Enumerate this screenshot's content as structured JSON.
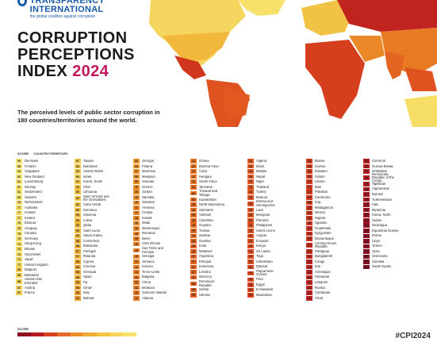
{
  "header": {
    "logo_name": "TRANSPARENCY INTERNATIONAL",
    "logo_tag": "the global coalition against corruption",
    "title_line1": "CORRUPTION",
    "title_line2": "PERCEPTIONS",
    "title_line3": "INDEX",
    "title_year": "2024",
    "subtitle": "The perceived levels of public sector corruption in 180 countries/territories around the world."
  },
  "table_header": {
    "score": "SCORE",
    "country": "COUNTRY/TERRITORY"
  },
  "colors": {
    "highest": "#f7e16b",
    "high": "#f3c43f",
    "mid": "#eb8f2a",
    "low": "#d6431f",
    "lowest": "#8e1022"
  },
  "columns": [
    [
      {
        "score": "90",
        "name": "Denmark",
        "tone": "#f7e46f"
      },
      {
        "score": "88",
        "name": "Finland",
        "tone": "#f7e46f"
      },
      {
        "score": "84",
        "name": "Singapore",
        "tone": "#f7e46f"
      },
      {
        "score": "83",
        "name": "New Zealand",
        "tone": "#f7e46f"
      },
      {
        "score": "81",
        "name": "Luxembourg",
        "tone": "#f7e46f"
      },
      {
        "score": "81",
        "name": "Norway",
        "tone": "#f7e46f"
      },
      {
        "score": "81",
        "name": "Switzerland",
        "tone": "#f7e46f"
      },
      {
        "score": "80",
        "name": "Sweden",
        "tone": "#f7e46f"
      },
      {
        "score": "78",
        "name": "Netherlands",
        "tone": "#f6de66"
      },
      {
        "score": "77",
        "name": "Australia",
        "tone": "#f6de66"
      },
      {
        "score": "77",
        "name": "Iceland",
        "tone": "#f6de66"
      },
      {
        "score": "77",
        "name": "Ireland",
        "tone": "#f6de66"
      },
      {
        "score": "76",
        "name": "Estonia",
        "tone": "#f6de66"
      },
      {
        "score": "76",
        "name": "Uruguay",
        "tone": "#f6de66"
      },
      {
        "score": "75",
        "name": "Canada",
        "tone": "#f6de66"
      },
      {
        "score": "75",
        "name": "Germany",
        "tone": "#f6de66"
      },
      {
        "score": "74",
        "name": "Hong Kong",
        "tone": "#f5d85e"
      },
      {
        "score": "72",
        "name": "Bhutan",
        "tone": "#f5d85e"
      },
      {
        "score": "72",
        "name": "Seychelles",
        "tone": "#f5d85e"
      },
      {
        "score": "71",
        "name": "Japan",
        "tone": "#f5d85e"
      },
      {
        "score": "71",
        "name": "United Kingdom",
        "tone": "#f5d85e"
      },
      {
        "score": "69",
        "name": "Belgium",
        "tone": "#f4d055"
      },
      {
        "score": "68",
        "name": "Barbados",
        "tone": "#f4d055"
      },
      {
        "score": "68",
        "name": "United Arab Emirates",
        "tone": "#f4d055",
        "tall": true
      },
      {
        "score": "67",
        "name": "Austria",
        "tone": "#f4d055"
      },
      {
        "score": "67",
        "name": "France",
        "tone": "#f4d055"
      }
    ],
    [
      {
        "score": "67",
        "name": "Taiwan",
        "tone": "#f3ca4c"
      },
      {
        "score": "65",
        "name": "Bahamas",
        "tone": "#f3ca4c"
      },
      {
        "score": "65",
        "name": "United States",
        "tone": "#f3ca4c"
      },
      {
        "score": "64",
        "name": "Israel",
        "tone": "#f3ca4c"
      },
      {
        "score": "64",
        "name": "Korea, South",
        "tone": "#f3ca4c"
      },
      {
        "score": "63",
        "name": "Chile",
        "tone": "#f2c244"
      },
      {
        "score": "63",
        "name": "Lithuania",
        "tone": "#f2c244"
      },
      {
        "score": "63",
        "name": "Saint Vincent and the Grenadines",
        "tone": "#f2c244",
        "tall": true
      },
      {
        "score": "62",
        "name": "Cabo Verde",
        "tone": "#f2c244"
      },
      {
        "score": "60",
        "name": "Dominica",
        "tone": "#f1b83c"
      },
      {
        "score": "60",
        "name": "Slovenia",
        "tone": "#f1b83c"
      },
      {
        "score": "59",
        "name": "Latvia",
        "tone": "#f1b83c"
      },
      {
        "score": "59",
        "name": "Qatar",
        "tone": "#f1b83c"
      },
      {
        "score": "59",
        "name": "Saint Lucia",
        "tone": "#f1b83c"
      },
      {
        "score": "59",
        "name": "Saudi Arabia",
        "tone": "#f1b83c"
      },
      {
        "score": "58",
        "name": "Costa Rica",
        "tone": "#f0ae36"
      },
      {
        "score": "58",
        "name": "Botswana",
        "tone": "#f0ae36"
      },
      {
        "score": "57",
        "name": "Portugal",
        "tone": "#f0ae36"
      },
      {
        "score": "57",
        "name": "Rwanda",
        "tone": "#f0ae36"
      },
      {
        "score": "56",
        "name": "Cyprus",
        "tone": "#efa531"
      },
      {
        "score": "56",
        "name": "Czechia",
        "tone": "#efa531"
      },
      {
        "score": "56",
        "name": "Grenada",
        "tone": "#efa531"
      },
      {
        "score": "56",
        "name": "Spain",
        "tone": "#efa531"
      },
      {
        "score": "55",
        "name": "Fiji",
        "tone": "#efa531"
      },
      {
        "score": "55",
        "name": "Oman",
        "tone": "#efa531"
      },
      {
        "score": "54",
        "name": "Italy",
        "tone": "#ee9c2d"
      },
      {
        "score": "53",
        "name": "Bahrain",
        "tone": "#ee9c2d"
      }
    ],
    [
      {
        "score": "53",
        "name": "Georgia",
        "tone": "#ed962b"
      },
      {
        "score": "53",
        "name": "Poland",
        "tone": "#ed962b"
      },
      {
        "score": "51",
        "name": "Mauritius",
        "tone": "#ed962b"
      },
      {
        "score": "50",
        "name": "Malaysia",
        "tone": "#ec8f29"
      },
      {
        "score": "50",
        "name": "Vanuatu",
        "tone": "#ec8f29"
      },
      {
        "score": "49",
        "name": "Greece",
        "tone": "#ec8f29"
      },
      {
        "score": "49",
        "name": "Jordan",
        "tone": "#ec8f29"
      },
      {
        "score": "49",
        "name": "Namibia",
        "tone": "#ec8f29"
      },
      {
        "score": "49",
        "name": "Slovakia",
        "tone": "#ec8f29"
      },
      {
        "score": "47",
        "name": "Armenia",
        "tone": "#ea8727"
      },
      {
        "score": "47",
        "name": "Croatia",
        "tone": "#ea8727"
      },
      {
        "score": "46",
        "name": "Kuwait",
        "tone": "#ea8727"
      },
      {
        "score": "46",
        "name": "Malta",
        "tone": "#ea8727"
      },
      {
        "score": "46",
        "name": "Montenegro",
        "tone": "#ea8727"
      },
      {
        "score": "46",
        "name": "Romania",
        "tone": "#ea8727"
      },
      {
        "score": "45",
        "name": "Benin",
        "tone": "#e98025"
      },
      {
        "score": "45",
        "name": "Côte d'Ivoire",
        "tone": "#e98025"
      },
      {
        "score": "45",
        "name": "Sao Tome and Principe",
        "tone": "#e98025",
        "tall": true
      },
      {
        "score": "45",
        "name": "Senegal",
        "tone": "#e98025"
      },
      {
        "score": "44",
        "name": "Jamaica",
        "tone": "#e98025"
      },
      {
        "score": "44",
        "name": "Kosovo",
        "tone": "#e98025"
      },
      {
        "score": "44",
        "name": "Timor-Leste",
        "tone": "#e98025"
      },
      {
        "score": "43",
        "name": "Bulgaria",
        "tone": "#e87a24"
      },
      {
        "score": "43",
        "name": "China",
        "tone": "#e87a24"
      },
      {
        "score": "42",
        "name": "Moldova",
        "tone": "#e87a24"
      },
      {
        "score": "42",
        "name": "Solomon Islands",
        "tone": "#e87a24"
      },
      {
        "score": "41",
        "name": "Albania",
        "tone": "#e87a24"
      }
    ],
    [
      {
        "score": "41",
        "name": "Ghana",
        "tone": "#e77423"
      },
      {
        "score": "41",
        "name": "Burkina Faso",
        "tone": "#e77423"
      },
      {
        "score": "41",
        "name": "Cuba",
        "tone": "#e77423"
      },
      {
        "score": "41",
        "name": "Hungary",
        "tone": "#e77423"
      },
      {
        "score": "41",
        "name": "South Africa",
        "tone": "#e77423"
      },
      {
        "score": "40",
        "name": "Tanzania",
        "tone": "#e67023"
      },
      {
        "score": "40",
        "name": "Trinidad and Tobago",
        "tone": "#e67023",
        "tall": true
      },
      {
        "score": "39",
        "name": "Kazakhstan",
        "tone": "#e56a22"
      },
      {
        "score": "39",
        "name": "North Macedonia",
        "tone": "#e56a22"
      },
      {
        "score": "39",
        "name": "Suriname",
        "tone": "#e56a22"
      },
      {
        "score": "39",
        "name": "Vietnam",
        "tone": "#e56a22"
      },
      {
        "score": "39",
        "name": "Colombia",
        "tone": "#e56a22"
      },
      {
        "score": "39",
        "name": "Guyana",
        "tone": "#e56a22"
      },
      {
        "score": "39",
        "name": "Tunisia",
        "tone": "#e56a22"
      },
      {
        "score": "39",
        "name": "Zambia",
        "tone": "#e56a22"
      },
      {
        "score": "38",
        "name": "Gambia",
        "tone": "#e46522"
      },
      {
        "score": "38",
        "name": "India",
        "tone": "#e46522"
      },
      {
        "score": "38",
        "name": "Maldives",
        "tone": "#e46522"
      },
      {
        "score": "37",
        "name": "Argentina",
        "tone": "#e46522"
      },
      {
        "score": "37",
        "name": "Ethiopia",
        "tone": "#e46522"
      },
      {
        "score": "37",
        "name": "Indonesia",
        "tone": "#e46522"
      },
      {
        "score": "37",
        "name": "Lesotho",
        "tone": "#e46522"
      },
      {
        "score": "37",
        "name": "Morocco",
        "tone": "#e46522"
      },
      {
        "score": "36",
        "name": "Dominican Republic",
        "tone": "#e35f21",
        "tall": true
      },
      {
        "score": "35",
        "name": "Serbia",
        "tone": "#e35f21"
      },
      {
        "score": "35",
        "name": "Ukraine",
        "tone": "#e35f21"
      }
    ],
    [
      {
        "score": "34",
        "name": "Algeria",
        "tone": "#e15920"
      },
      {
        "score": "34",
        "name": "Brazil",
        "tone": "#e15920"
      },
      {
        "score": "34",
        "name": "Malawi",
        "tone": "#e15920"
      },
      {
        "score": "34",
        "name": "Nepal",
        "tone": "#e15920"
      },
      {
        "score": "34",
        "name": "Niger",
        "tone": "#e15920"
      },
      {
        "score": "34",
        "name": "Thailand",
        "tone": "#e15920"
      },
      {
        "score": "34",
        "name": "Turkey",
        "tone": "#e15920"
      },
      {
        "score": "33",
        "name": "Belarus",
        "tone": "#df5320"
      },
      {
        "score": "33",
        "name": "Bosnia and Herzegovina",
        "tone": "#df5320",
        "tall": true
      },
      {
        "score": "33",
        "name": "Laos",
        "tone": "#df5320"
      },
      {
        "score": "33",
        "name": "Mongolia",
        "tone": "#df5320"
      },
      {
        "score": "33",
        "name": "Panama",
        "tone": "#df5320"
      },
      {
        "score": "33",
        "name": "Philippines",
        "tone": "#df5320"
      },
      {
        "score": "33",
        "name": "Sierra Leone",
        "tone": "#df5320"
      },
      {
        "score": "32",
        "name": "Angola",
        "tone": "#dd4d1f"
      },
      {
        "score": "32",
        "name": "Ecuador",
        "tone": "#dd4d1f"
      },
      {
        "score": "32",
        "name": "Kenya",
        "tone": "#dd4d1f"
      },
      {
        "score": "32",
        "name": "Sri Lanka",
        "tone": "#dd4d1f"
      },
      {
        "score": "32",
        "name": "Togo",
        "tone": "#dd4d1f"
      },
      {
        "score": "32",
        "name": "Uzbekistan",
        "tone": "#dd4d1f"
      },
      {
        "score": "31",
        "name": "Djibouti",
        "tone": "#db481f"
      },
      {
        "score": "31",
        "name": "Papua New Guinea",
        "tone": "#db481f",
        "tall": true
      },
      {
        "score": "31",
        "name": "Peru",
        "tone": "#db481f"
      },
      {
        "score": "30",
        "name": "Egypt",
        "tone": "#d9441e"
      },
      {
        "score": "30",
        "name": "El Salvador",
        "tone": "#d9441e"
      },
      {
        "score": "30",
        "name": "Mauritania",
        "tone": "#d9441e"
      }
    ],
    [
      {
        "score": "28",
        "name": "Bolivia",
        "tone": "#d63f1e"
      },
      {
        "score": "28",
        "name": "Guinea",
        "tone": "#d63f1e"
      },
      {
        "score": "28",
        "name": "Eswatini",
        "tone": "#d63f1e"
      },
      {
        "score": "28",
        "name": "Gabon",
        "tone": "#d63f1e"
      },
      {
        "score": "27",
        "name": "Liberia",
        "tone": "#d33a1e"
      },
      {
        "score": "27",
        "name": "Mali",
        "tone": "#d33a1e"
      },
      {
        "score": "27",
        "name": "Pakistan",
        "tone": "#d33a1e"
      },
      {
        "score": "26",
        "name": "Cameroon",
        "tone": "#d0351e"
      },
      {
        "score": "26",
        "name": "Iraq",
        "tone": "#d0351e"
      },
      {
        "score": "26",
        "name": "Madagascar",
        "tone": "#d0351e"
      },
      {
        "score": "26",
        "name": "Mexico",
        "tone": "#d0351e"
      },
      {
        "score": "26",
        "name": "Nigeria",
        "tone": "#d0351e"
      },
      {
        "score": "26",
        "name": "Uganda",
        "tone": "#d0351e"
      },
      {
        "score": "25",
        "name": "Guatemala",
        "tone": "#cd301e"
      },
      {
        "score": "25",
        "name": "Kyrgyzstan",
        "tone": "#cd301e"
      },
      {
        "score": "25",
        "name": "Mozambique",
        "tone": "#cd301e"
      },
      {
        "score": "24",
        "name": "Central African Republic",
        "tone": "#c92c1e",
        "tall": true
      },
      {
        "score": "24",
        "name": "Paraguay",
        "tone": "#c92c1e"
      },
      {
        "score": "23",
        "name": "Bangladesh",
        "tone": "#c5281e"
      },
      {
        "score": "22",
        "name": "Congo",
        "tone": "#c1241e"
      },
      {
        "score": "22",
        "name": "Iran",
        "tone": "#c1241e"
      },
      {
        "score": "22",
        "name": "Azerbaijan",
        "tone": "#c1241e"
      },
      {
        "score": "22",
        "name": "Honduras",
        "tone": "#c1241e"
      },
      {
        "score": "22",
        "name": "Lebanon",
        "tone": "#c1241e"
      },
      {
        "score": "22",
        "name": "Russia",
        "tone": "#c1241e"
      },
      {
        "score": "21",
        "name": "Cambodia",
        "tone": "#bd201e"
      },
      {
        "score": "21",
        "name": "Chad",
        "tone": "#bd201e"
      }
    ],
    [
      {
        "score": "20",
        "name": "Comoros",
        "tone": "#b71c1f"
      },
      {
        "score": "20",
        "name": "Guinea-Bissau",
        "tone": "#b71c1f"
      },
      {
        "score": "20",
        "name": "Zimbabwe",
        "tone": "#b71c1f"
      },
      {
        "score": "20",
        "name": "Democratic Republic of the Congo",
        "tone": "#b71c1f",
        "tall": true
      },
      {
        "score": "19",
        "name": "Tajikistan",
        "tone": "#b01920"
      },
      {
        "score": "18",
        "name": "Afghanistan",
        "tone": "#aa1720"
      },
      {
        "score": "17",
        "name": "Burundi",
        "tone": "#a41520"
      },
      {
        "score": "17",
        "name": "Turkmenistan",
        "tone": "#a41520"
      },
      {
        "score": "16",
        "name": "Haiti",
        "tone": "#9e1321"
      },
      {
        "score": "16",
        "name": "Myanmar",
        "tone": "#9e1321"
      },
      {
        "score": "15",
        "name": "Korea, North",
        "tone": "#991222"
      },
      {
        "score": "15",
        "name": "Sudan",
        "tone": "#991222"
      },
      {
        "score": "14",
        "name": "Nicaragua",
        "tone": "#941122"
      },
      {
        "score": "13",
        "name": "Equatorial Guinea",
        "tone": "#8f1022"
      },
      {
        "score": "13",
        "name": "Eritrea",
        "tone": "#8f1022"
      },
      {
        "score": "13",
        "name": "Libya",
        "tone": "#8f1022"
      },
      {
        "score": "13",
        "name": "Yemen",
        "tone": "#8f1022"
      },
      {
        "score": "12",
        "name": "Syria",
        "tone": "#8a0f22"
      },
      {
        "score": "10",
        "name": "Venezuela",
        "tone": "#840e22"
      },
      {
        "score": "9",
        "name": "Somalia",
        "tone": "#7e0d22"
      },
      {
        "score": "8",
        "name": "South Sudan",
        "tone": "#780c22"
      }
    ]
  ],
  "footer": {
    "score_label": "SCORE",
    "hashtag": "#CPI2024"
  },
  "legend_colors": [
    "#8e1022",
    "#b41b20",
    "#d6431f",
    "#e4692a",
    "#eb8f2a",
    "#f0ad36",
    "#f3c43f",
    "#f5d35a",
    "#f7e16b"
  ]
}
